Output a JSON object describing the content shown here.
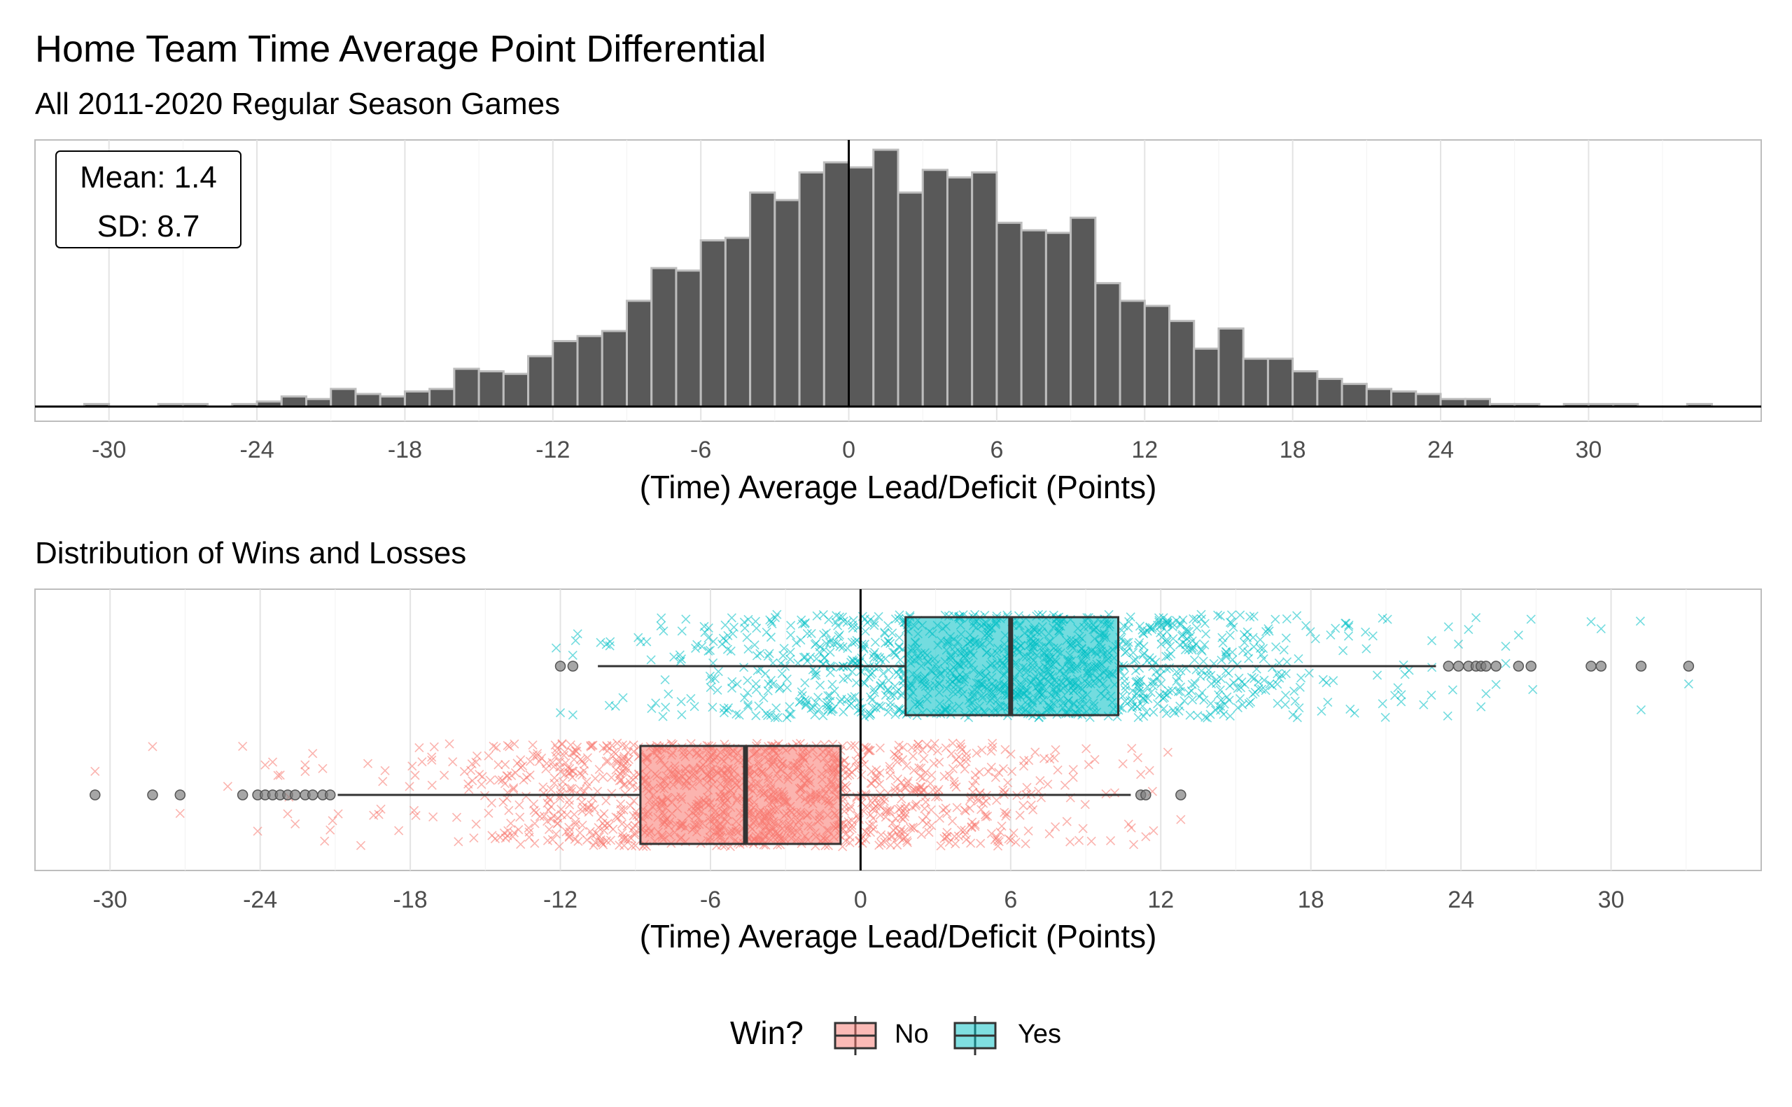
{
  "chart_data": [
    {
      "type": "bar",
      "title": "Home Team Time Average Point Differential",
      "subtitle": "All 2011-2020 Regular Season Games",
      "xlabel": "(Time) Average Lead/Deficit (Points)",
      "ylabel": "",
      "xlim": [
        -33,
        37
      ],
      "x_ticks": [
        -30,
        -24,
        -18,
        -12,
        -6,
        0,
        6,
        12,
        18,
        24,
        30
      ],
      "y_ticks_shown": false,
      "grid": true,
      "bin_width": 1,
      "reference_line_x": 0,
      "stats_box": {
        "mean_label": "Mean: 1.4",
        "sd_label": "SD: 8.7",
        "position": "top-left"
      },
      "bins_start": [
        -32,
        -31,
        -30,
        -29,
        -28,
        -27,
        -26,
        -25,
        -24,
        -23,
        -22,
        -21,
        -20,
        -19,
        -18,
        -17,
        -16,
        -15,
        -14,
        -13,
        -12,
        -11,
        -10,
        -9,
        -8,
        -7,
        -6,
        -5,
        -4,
        -3,
        -2,
        -1,
        0,
        1,
        2,
        3,
        4,
        5,
        6,
        7,
        8,
        9,
        10,
        11,
        12,
        13,
        14,
        15,
        16,
        17,
        18,
        19,
        20,
        21,
        22,
        23,
        24,
        25,
        26,
        27,
        28,
        29,
        30,
        31,
        32,
        33,
        34
      ],
      "counts": [
        0,
        1,
        0,
        0,
        1,
        1,
        0,
        1,
        2,
        4,
        3,
        7,
        5,
        4,
        6,
        7,
        15,
        14,
        13,
        20,
        26,
        28,
        30,
        42,
        55,
        54,
        66,
        67,
        85,
        82,
        93,
        97,
        95,
        102,
        85,
        94,
        91,
        93,
        73,
        70,
        69,
        75,
        49,
        42,
        40,
        34,
        23,
        31,
        19,
        19,
        14,
        11,
        9,
        7,
        6,
        5,
        3,
        3,
        1,
        1,
        0,
        1,
        1,
        1,
        0,
        0,
        1
      ],
      "y_max": 102
    },
    {
      "type": "box",
      "title": "Distribution of Wins and Losses",
      "xlabel": "(Time) Average Lead/Deficit (Points)",
      "xlim": [
        -33,
        36
      ],
      "x_ticks": [
        -30,
        -24,
        -18,
        -12,
        -6,
        0,
        6,
        12,
        18,
        24,
        30
      ],
      "grid": true,
      "reference_line_x": 0,
      "legend": {
        "title": "Win?",
        "position": "bottom"
      },
      "series": [
        {
          "name": "Yes",
          "color": "#00BFC4",
          "q1": 1.8,
          "median": 6.0,
          "q3": 10.3,
          "whisker_low": -10.5,
          "whisker_high": 23,
          "outliers": [
            -12.0,
            -11.5,
            23.5,
            23.9,
            24.3,
            24.6,
            24.8,
            25.0,
            25.4,
            26.3,
            26.8,
            29.2,
            29.6,
            31.2,
            33.1
          ],
          "jitter_min": -12.5,
          "jitter_max": 33.5
        },
        {
          "name": "No",
          "color": "#F8766D",
          "q1": -8.8,
          "median": -4.6,
          "q3": -0.8,
          "whisker_low": -20.9,
          "whisker_high": 10.8,
          "outliers": [
            -30.6,
            -28.3,
            -27.2,
            -24.7,
            -24.1,
            -23.8,
            -23.5,
            -23.2,
            -22.9,
            -22.6,
            -22.2,
            -21.9,
            -21.5,
            -21.2,
            11.2,
            11.4,
            12.8
          ],
          "jitter_min": -30.8,
          "jitter_max": 13.0
        }
      ]
    }
  ]
}
